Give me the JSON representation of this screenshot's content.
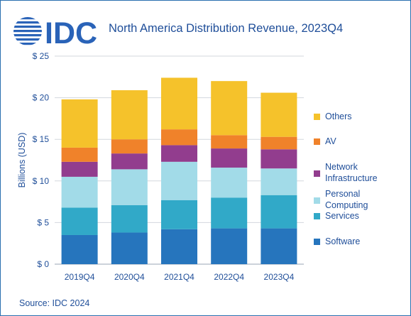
{
  "brand": {
    "logo_text": "IDC",
    "logo_color": "#2a63b8",
    "text_color": "#1f4e99"
  },
  "title": "North America Distribution Revenue, 2023Q4",
  "source": "Source: IDC 2024",
  "chart_data": {
    "type": "bar",
    "stacked": true,
    "categories": [
      "2019Q4",
      "2020Q4",
      "2021Q4",
      "2022Q4",
      "2023Q4"
    ],
    "ylabel": "Billions (USD)",
    "ylim": [
      0,
      25
    ],
    "yticks": [
      0,
      5,
      10,
      15,
      20,
      25
    ],
    "ytick_labels": [
      "$ 0",
      "$ 5",
      "$ 10",
      "$ 15",
      "$ 20",
      "$ 25"
    ],
    "grid": true,
    "legend_position": "right",
    "series": [
      {
        "name": "Software",
        "color": "#2675bd",
        "values": [
          3.5,
          3.8,
          4.2,
          4.3,
          4.3
        ]
      },
      {
        "name": "Services",
        "color": "#31a9c8",
        "values": [
          3.3,
          3.3,
          3.5,
          3.7,
          4.0
        ]
      },
      {
        "name": "Personal Computing",
        "color": "#a2dbe8",
        "values": [
          3.7,
          4.3,
          4.6,
          3.6,
          3.2
        ]
      },
      {
        "name": "Network Infrastructure",
        "color": "#923d8e",
        "values": [
          1.8,
          1.9,
          2.0,
          2.3,
          2.3
        ]
      },
      {
        "name": "AV",
        "color": "#f0822a",
        "values": [
          1.7,
          1.7,
          1.9,
          1.6,
          1.5
        ]
      },
      {
        "name": "Others",
        "color": "#f5c22b",
        "values": [
          5.8,
          5.9,
          6.2,
          6.5,
          5.3
        ]
      }
    ],
    "legend_order": [
      {
        "series": 5,
        "lines": [
          "Others"
        ]
      },
      {
        "series": 4,
        "lines": [
          "AV"
        ]
      },
      {
        "series": 3,
        "lines": [
          "Network",
          "Infrastructure"
        ]
      },
      {
        "series": 2,
        "lines": [
          "Personal",
          "Computing"
        ]
      },
      {
        "series": 1,
        "lines": [
          "Services"
        ]
      },
      {
        "series": 0,
        "lines": [
          "Software"
        ]
      }
    ]
  }
}
